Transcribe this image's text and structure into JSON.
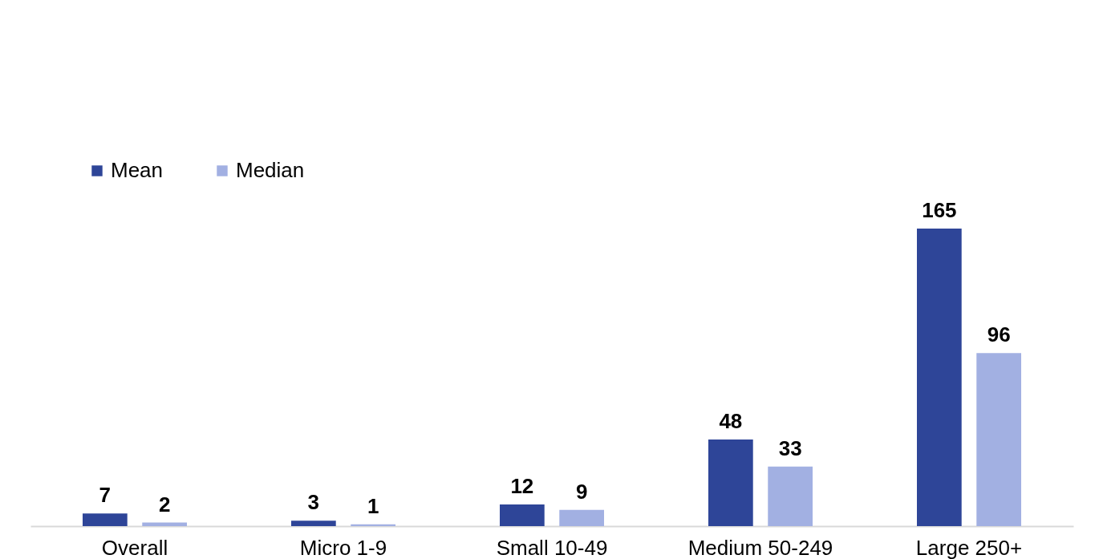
{
  "chart_data": {
    "type": "bar",
    "categories": [
      "Overall",
      "Micro 1-9",
      "Small 10-49",
      "Medium 50-249",
      "Large 250+"
    ],
    "series": [
      {
        "name": "Mean",
        "color": "#2e4598",
        "values": [
          7,
          3,
          12,
          48,
          165
        ]
      },
      {
        "name": "Median",
        "color": "#a2b0e2",
        "values": [
          2,
          1,
          9,
          33,
          96
        ]
      }
    ],
    "data_labels": true,
    "legend": "top left",
    "grid": false
  }
}
